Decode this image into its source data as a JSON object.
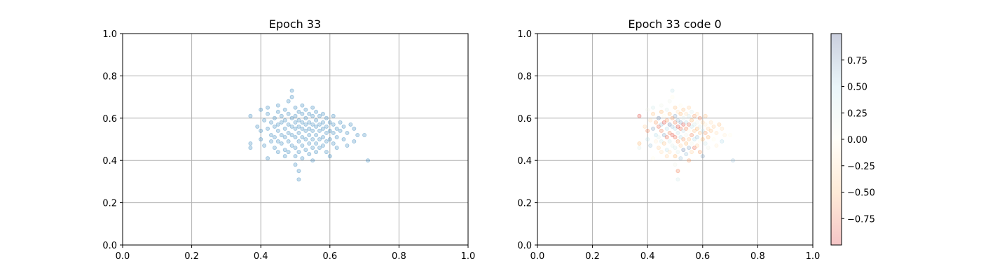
{
  "chart_data": [
    {
      "type": "scatter",
      "title": "Epoch 33",
      "xlabel": "",
      "ylabel": "",
      "xlim": [
        0.0,
        1.0
      ],
      "ylim": [
        0.0,
        1.0
      ],
      "xticks": [
        "0.0",
        "0.2",
        "0.4",
        "0.6",
        "0.8",
        "1.0"
      ],
      "yticks": [
        "0.0",
        "0.2",
        "0.4",
        "0.6",
        "0.8",
        "1.0"
      ],
      "grid": true,
      "marker_color": "#1f77b4",
      "marker_alpha": 0.25,
      "points": [
        [
          0.37,
          0.61
        ],
        [
          0.37,
          0.48
        ],
        [
          0.37,
          0.46
        ],
        [
          0.39,
          0.56
        ],
        [
          0.4,
          0.64
        ],
        [
          0.4,
          0.54
        ],
        [
          0.4,
          0.5
        ],
        [
          0.41,
          0.59
        ],
        [
          0.41,
          0.47
        ],
        [
          0.42,
          0.65
        ],
        [
          0.42,
          0.62
        ],
        [
          0.42,
          0.55
        ],
        [
          0.42,
          0.41
        ],
        [
          0.43,
          0.58
        ],
        [
          0.43,
          0.52
        ],
        [
          0.43,
          0.49
        ],
        [
          0.44,
          0.6
        ],
        [
          0.44,
          0.56
        ],
        [
          0.44,
          0.51
        ],
        [
          0.44,
          0.46
        ],
        [
          0.45,
          0.66
        ],
        [
          0.45,
          0.63
        ],
        [
          0.45,
          0.57
        ],
        [
          0.45,
          0.54
        ],
        [
          0.45,
          0.49
        ],
        [
          0.45,
          0.44
        ],
        [
          0.46,
          0.61
        ],
        [
          0.46,
          0.58
        ],
        [
          0.46,
          0.52
        ],
        [
          0.46,
          0.48
        ],
        [
          0.47,
          0.64
        ],
        [
          0.47,
          0.59
        ],
        [
          0.47,
          0.55
        ],
        [
          0.47,
          0.51
        ],
        [
          0.47,
          0.45
        ],
        [
          0.47,
          0.42
        ],
        [
          0.48,
          0.68
        ],
        [
          0.48,
          0.62
        ],
        [
          0.48,
          0.57
        ],
        [
          0.48,
          0.53
        ],
        [
          0.48,
          0.49
        ],
        [
          0.48,
          0.44
        ],
        [
          0.49,
          0.73
        ],
        [
          0.49,
          0.7
        ],
        [
          0.49,
          0.6
        ],
        [
          0.49,
          0.56
        ],
        [
          0.49,
          0.52
        ],
        [
          0.49,
          0.47
        ],
        [
          0.5,
          0.65
        ],
        [
          0.5,
          0.61
        ],
        [
          0.5,
          0.58
        ],
        [
          0.5,
          0.55
        ],
        [
          0.5,
          0.51
        ],
        [
          0.5,
          0.46
        ],
        [
          0.5,
          0.42
        ],
        [
          0.5,
          0.38
        ],
        [
          0.51,
          0.63
        ],
        [
          0.51,
          0.59
        ],
        [
          0.51,
          0.56
        ],
        [
          0.51,
          0.53
        ],
        [
          0.51,
          0.49
        ],
        [
          0.51,
          0.44
        ],
        [
          0.51,
          0.35
        ],
        [
          0.51,
          0.31
        ],
        [
          0.52,
          0.66
        ],
        [
          0.52,
          0.62
        ],
        [
          0.52,
          0.58
        ],
        [
          0.52,
          0.55
        ],
        [
          0.52,
          0.51
        ],
        [
          0.52,
          0.47
        ],
        [
          0.52,
          0.41
        ],
        [
          0.53,
          0.64
        ],
        [
          0.53,
          0.6
        ],
        [
          0.53,
          0.57
        ],
        [
          0.53,
          0.54
        ],
        [
          0.53,
          0.5
        ],
        [
          0.53,
          0.45
        ],
        [
          0.54,
          0.62
        ],
        [
          0.54,
          0.58
        ],
        [
          0.54,
          0.55
        ],
        [
          0.54,
          0.52
        ],
        [
          0.54,
          0.48
        ],
        [
          0.54,
          0.43
        ],
        [
          0.55,
          0.65
        ],
        [
          0.55,
          0.61
        ],
        [
          0.55,
          0.57
        ],
        [
          0.55,
          0.54
        ],
        [
          0.55,
          0.5
        ],
        [
          0.55,
          0.46
        ],
        [
          0.55,
          0.4
        ],
        [
          0.56,
          0.63
        ],
        [
          0.56,
          0.59
        ],
        [
          0.56,
          0.56
        ],
        [
          0.56,
          0.52
        ],
        [
          0.56,
          0.48
        ],
        [
          0.56,
          0.44
        ],
        [
          0.57,
          0.61
        ],
        [
          0.57,
          0.57
        ],
        [
          0.57,
          0.54
        ],
        [
          0.57,
          0.5
        ],
        [
          0.57,
          0.46
        ],
        [
          0.58,
          0.62
        ],
        [
          0.58,
          0.58
        ],
        [
          0.58,
          0.55
        ],
        [
          0.58,
          0.51
        ],
        [
          0.58,
          0.47
        ],
        [
          0.59,
          0.6
        ],
        [
          0.59,
          0.56
        ],
        [
          0.59,
          0.53
        ],
        [
          0.59,
          0.49
        ],
        [
          0.59,
          0.44
        ],
        [
          0.6,
          0.58
        ],
        [
          0.6,
          0.54
        ],
        [
          0.6,
          0.5
        ],
        [
          0.6,
          0.42
        ],
        [
          0.61,
          0.61
        ],
        [
          0.61,
          0.57
        ],
        [
          0.61,
          0.53
        ],
        [
          0.61,
          0.48
        ],
        [
          0.62,
          0.55
        ],
        [
          0.62,
          0.51
        ],
        [
          0.62,
          0.46
        ],
        [
          0.63,
          0.58
        ],
        [
          0.63,
          0.54
        ],
        [
          0.64,
          0.56
        ],
        [
          0.64,
          0.5
        ],
        [
          0.65,
          0.53
        ],
        [
          0.65,
          0.47
        ],
        [
          0.66,
          0.57
        ],
        [
          0.67,
          0.55
        ],
        [
          0.67,
          0.49
        ],
        [
          0.68,
          0.52
        ],
        [
          0.7,
          0.52
        ],
        [
          0.71,
          0.4
        ]
      ]
    },
    {
      "type": "scatter",
      "title": "Epoch 33 code 0",
      "xlabel": "",
      "ylabel": "",
      "xlim": [
        0.0,
        1.0
      ],
      "ylim": [
        0.0,
        1.0
      ],
      "xticks": [
        "0.0",
        "0.2",
        "0.4",
        "0.6",
        "0.8",
        "1.0"
      ],
      "yticks": [
        "0.0",
        "0.2",
        "0.4",
        "0.6",
        "0.8",
        "1.0"
      ],
      "grid": true,
      "colormap": "RdYlBu-like (red → cream → blue)",
      "marker_alpha": 0.25,
      "colorbar": {
        "range": [
          -1.0,
          1.0
        ],
        "ticks": [
          "0.75",
          "0.50",
          "0.25",
          "0.00",
          "−0.25",
          "−0.50",
          "−0.75"
        ],
        "tick_values": [
          0.75,
          0.5,
          0.25,
          0.0,
          -0.25,
          -0.5,
          -0.75
        ],
        "colors": [
          "#d7191c",
          "#fdae61",
          "#fffbe6",
          "#abd9e9",
          "#2c3e7b"
        ]
      },
      "points": [
        [
          0.37,
          0.61,
          -0.9
        ],
        [
          0.37,
          0.48,
          -0.5
        ],
        [
          0.37,
          0.46,
          0.2
        ],
        [
          0.39,
          0.56,
          -0.3
        ],
        [
          0.4,
          0.64,
          0.1
        ],
        [
          0.4,
          0.54,
          -0.7
        ],
        [
          0.4,
          0.5,
          0.4
        ],
        [
          0.41,
          0.59,
          -0.2
        ],
        [
          0.41,
          0.47,
          0.6
        ],
        [
          0.42,
          0.65,
          0.3
        ],
        [
          0.42,
          0.62,
          -0.4
        ],
        [
          0.42,
          0.55,
          0.7
        ],
        [
          0.42,
          0.41,
          0.0
        ],
        [
          0.43,
          0.58,
          -0.6
        ],
        [
          0.43,
          0.52,
          0.5
        ],
        [
          0.43,
          0.49,
          -0.1
        ],
        [
          0.44,
          0.6,
          0.8
        ],
        [
          0.44,
          0.56,
          -0.8
        ],
        [
          0.44,
          0.51,
          0.2
        ],
        [
          0.44,
          0.46,
          -0.3
        ],
        [
          0.45,
          0.66,
          0.1
        ],
        [
          0.45,
          0.63,
          -0.5
        ],
        [
          0.45,
          0.57,
          0.6
        ],
        [
          0.45,
          0.54,
          -0.7
        ],
        [
          0.45,
          0.49,
          0.3
        ],
        [
          0.45,
          0.44,
          -0.2
        ],
        [
          0.46,
          0.61,
          0.0
        ],
        [
          0.46,
          0.58,
          -0.9
        ],
        [
          0.46,
          0.52,
          0.7
        ],
        [
          0.46,
          0.48,
          -0.4
        ],
        [
          0.47,
          0.64,
          0.2
        ],
        [
          0.47,
          0.59,
          -0.6
        ],
        [
          0.47,
          0.55,
          0.5
        ],
        [
          0.47,
          0.51,
          -0.8
        ],
        [
          0.47,
          0.45,
          0.4
        ],
        [
          0.47,
          0.42,
          -0.3
        ],
        [
          0.48,
          0.68,
          0.1
        ],
        [
          0.48,
          0.62,
          -0.5
        ],
        [
          0.48,
          0.57,
          0.8
        ],
        [
          0.48,
          0.53,
          -0.7
        ],
        [
          0.48,
          0.49,
          0.3
        ],
        [
          0.48,
          0.44,
          -0.2
        ],
        [
          0.49,
          0.73,
          0.4
        ],
        [
          0.49,
          0.7,
          0.0
        ],
        [
          0.49,
          0.6,
          -0.6
        ],
        [
          0.49,
          0.56,
          0.6
        ],
        [
          0.49,
          0.52,
          -0.9
        ],
        [
          0.49,
          0.47,
          0.2
        ],
        [
          0.5,
          0.65,
          -0.4
        ],
        [
          0.5,
          0.61,
          0.7
        ],
        [
          0.5,
          0.58,
          -0.7
        ],
        [
          0.5,
          0.55,
          0.5
        ],
        [
          0.5,
          0.51,
          -0.8
        ],
        [
          0.5,
          0.46,
          0.3
        ],
        [
          0.5,
          0.42,
          -0.5
        ],
        [
          0.5,
          0.38,
          0.1
        ],
        [
          0.51,
          0.63,
          -0.2
        ],
        [
          0.51,
          0.59,
          0.6
        ],
        [
          0.51,
          0.56,
          -0.9
        ],
        [
          0.51,
          0.53,
          0.4
        ],
        [
          0.51,
          0.49,
          -0.6
        ],
        [
          0.51,
          0.44,
          0.2
        ],
        [
          0.51,
          0.35,
          -0.7
        ],
        [
          0.51,
          0.31,
          0.3
        ],
        [
          0.52,
          0.66,
          0.0
        ],
        [
          0.52,
          0.62,
          -0.5
        ],
        [
          0.52,
          0.58,
          0.7
        ],
        [
          0.52,
          0.55,
          -0.8
        ],
        [
          0.52,
          0.51,
          0.5
        ],
        [
          0.52,
          0.47,
          -0.3
        ],
        [
          0.52,
          0.41,
          0.6
        ],
        [
          0.53,
          0.64,
          -0.4
        ],
        [
          0.53,
          0.6,
          0.2
        ],
        [
          0.53,
          0.57,
          -0.9
        ],
        [
          0.53,
          0.54,
          0.4
        ],
        [
          0.53,
          0.5,
          -0.6
        ],
        [
          0.53,
          0.45,
          0.8
        ],
        [
          0.54,
          0.62,
          -0.2
        ],
        [
          0.54,
          0.58,
          0.5
        ],
        [
          0.54,
          0.55,
          -0.7
        ],
        [
          0.54,
          0.52,
          0.1
        ],
        [
          0.54,
          0.48,
          -0.5
        ],
        [
          0.54,
          0.43,
          0.6
        ],
        [
          0.55,
          0.65,
          -0.3
        ],
        [
          0.55,
          0.61,
          0.3
        ],
        [
          0.55,
          0.57,
          -0.8
        ],
        [
          0.55,
          0.54,
          0.0
        ],
        [
          0.55,
          0.5,
          -0.4
        ],
        [
          0.55,
          0.46,
          0.7
        ],
        [
          0.55,
          0.4,
          -0.6
        ],
        [
          0.56,
          0.63,
          0.2
        ],
        [
          0.56,
          0.59,
          -0.5
        ],
        [
          0.56,
          0.56,
          0.4
        ],
        [
          0.56,
          0.52,
          -0.7
        ],
        [
          0.56,
          0.48,
          0.1
        ],
        [
          0.56,
          0.44,
          -0.3
        ],
        [
          0.57,
          0.61,
          -0.6
        ],
        [
          0.57,
          0.57,
          0.3
        ],
        [
          0.57,
          0.54,
          -0.4
        ],
        [
          0.57,
          0.5,
          0.5
        ],
        [
          0.57,
          0.46,
          -0.8
        ],
        [
          0.58,
          0.62,
          -0.2
        ],
        [
          0.58,
          0.58,
          0.1
        ],
        [
          0.58,
          0.55,
          -0.5
        ],
        [
          0.58,
          0.51,
          0.6
        ],
        [
          0.58,
          0.47,
          -0.3
        ],
        [
          0.59,
          0.6,
          -0.7
        ],
        [
          0.59,
          0.56,
          0.2
        ],
        [
          0.59,
          0.53,
          -0.4
        ],
        [
          0.59,
          0.49,
          0.0
        ],
        [
          0.59,
          0.44,
          -0.6
        ],
        [
          0.6,
          0.58,
          -0.3
        ],
        [
          0.6,
          0.54,
          0.4
        ],
        [
          0.6,
          0.5,
          -0.5
        ],
        [
          0.6,
          0.42,
          0.7
        ],
        [
          0.61,
          0.61,
          -0.4
        ],
        [
          0.61,
          0.57,
          -0.1
        ],
        [
          0.61,
          0.53,
          -0.6
        ],
        [
          0.61,
          0.48,
          0.3
        ],
        [
          0.62,
          0.55,
          -0.3
        ],
        [
          0.62,
          0.51,
          -0.5
        ],
        [
          0.62,
          0.46,
          0.1
        ],
        [
          0.63,
          0.58,
          -0.2
        ],
        [
          0.63,
          0.54,
          -0.4
        ],
        [
          0.64,
          0.56,
          -0.3
        ],
        [
          0.64,
          0.5,
          0.0
        ],
        [
          0.65,
          0.53,
          -0.2
        ],
        [
          0.65,
          0.47,
          -0.1
        ],
        [
          0.66,
          0.57,
          -0.4
        ],
        [
          0.67,
          0.55,
          -0.2
        ],
        [
          0.67,
          0.49,
          0.5
        ],
        [
          0.68,
          0.52,
          -0.1
        ],
        [
          0.7,
          0.52,
          0.0
        ],
        [
          0.71,
          0.4,
          0.6
        ]
      ]
    }
  ]
}
